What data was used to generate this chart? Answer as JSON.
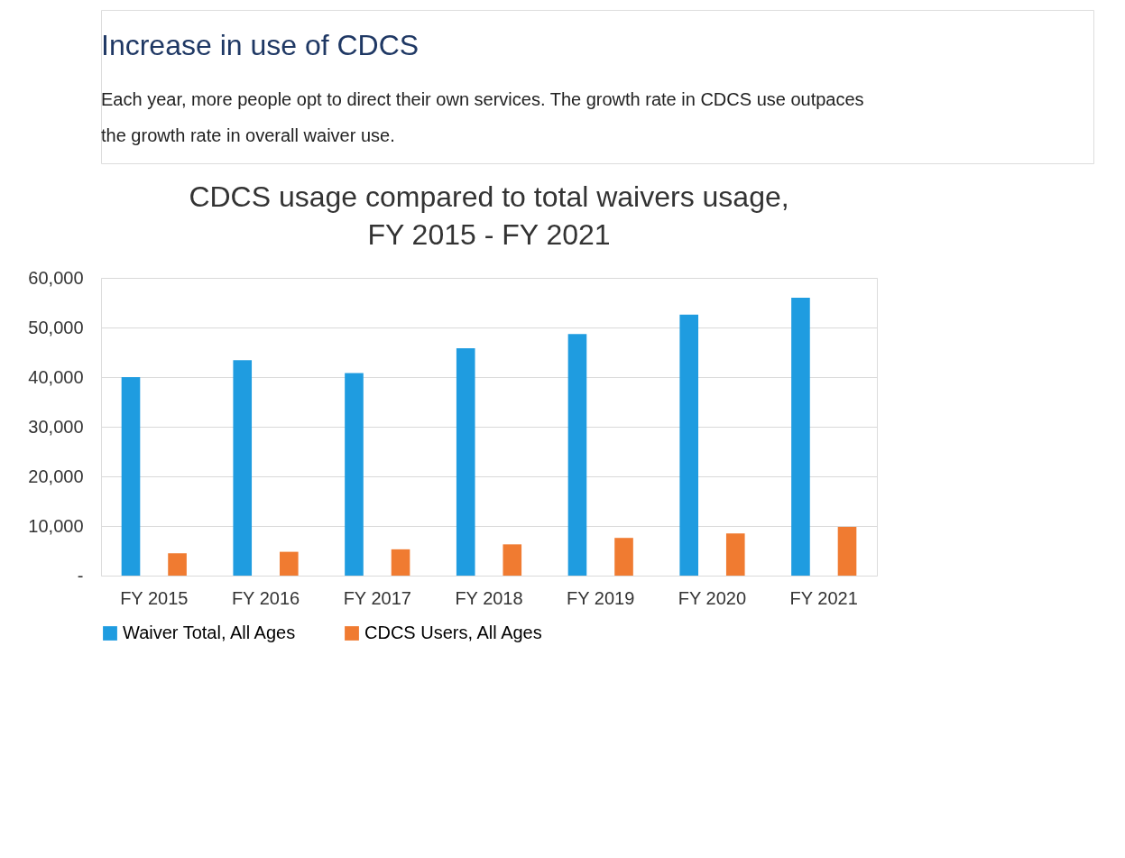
{
  "chart_data": {
    "type": "bar",
    "title": "CDCS usage compared to total waivers usage,\nFY 2015 - FY 2021",
    "annotations": [
      "Increase in use of CDCS",
      "Each year, more people opt to direct their own services. The growth rate in CDCS use outpaces",
      "the growth rate in overall waiver use."
    ],
    "categories": [
      "FY 2015",
      "FY 2016",
      "FY 2017",
      "FY 2018",
      "FY 2019",
      "FY 2020",
      "FY 2021"
    ],
    "series": [
      {
        "name": "Waiver Total, All Ages",
        "color": "#1f9ce0",
        "values": [
          40000,
          43400,
          40800,
          45800,
          48700,
          52600,
          56000
        ]
      },
      {
        "name": "CDCS Users, All Ages",
        "color": "#f07b31",
        "values": [
          4500,
          4800,
          5300,
          6300,
          7600,
          8500,
          9800
        ]
      }
    ],
    "ylim": [
      0,
      60000
    ],
    "yticks": [
      {
        "value": 0,
        "label": "-"
      },
      {
        "value": 10000,
        "label": "10,000"
      },
      {
        "value": 20000,
        "label": "20,000"
      },
      {
        "value": 30000,
        "label": "30,000"
      },
      {
        "value": 40000,
        "label": "40,000"
      },
      {
        "value": 50000,
        "label": "50,000"
      },
      {
        "value": 60000,
        "label": "60,000"
      }
    ],
    "grid": "y",
    "legend": "bottom"
  }
}
